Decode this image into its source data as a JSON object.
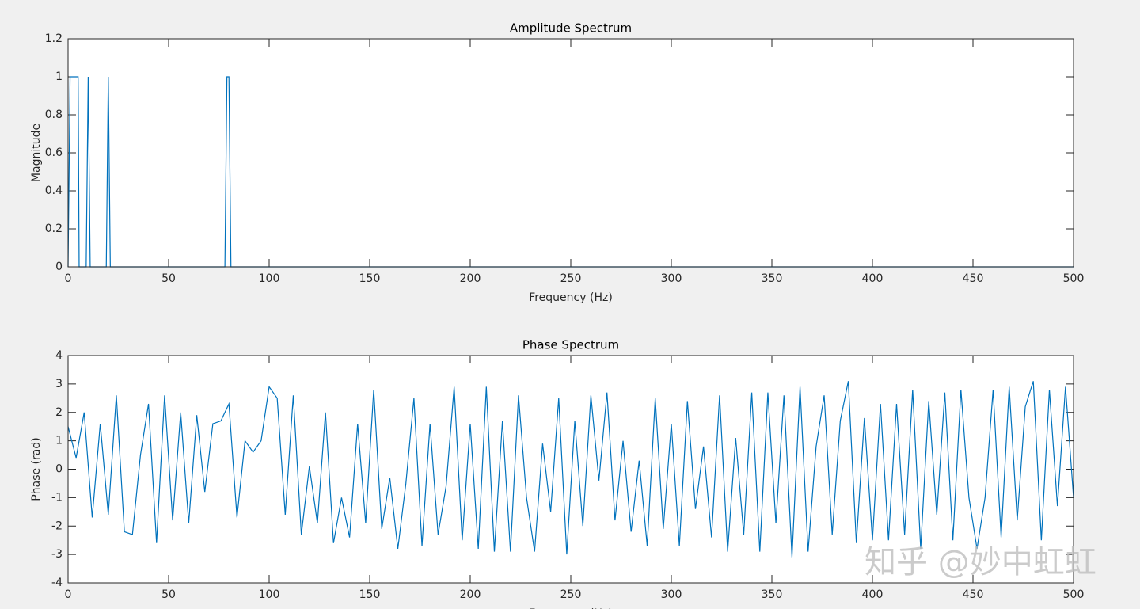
{
  "chart_data": [
    {
      "type": "line",
      "title": "Amplitude Spectrum",
      "xlabel": "Frequency (Hz)",
      "ylabel": "Magnitude",
      "series": [
        {
          "name": "Amplitude",
          "color": "#0072bd",
          "x": [
            0,
            1,
            2,
            3,
            4,
            5,
            5.5,
            9,
            10,
            11,
            19,
            20,
            21,
            78,
            79,
            80,
            81,
            500
          ],
          "values": [
            0,
            1,
            1,
            1,
            1,
            1,
            0,
            0,
            1,
            0,
            0,
            1,
            0,
            0,
            1,
            1,
            0,
            0
          ]
        }
      ],
      "xlim": [
        0,
        500
      ],
      "xticks": [
        0,
        50,
        100,
        150,
        200,
        250,
        300,
        350,
        400,
        450,
        500
      ],
      "ylim": [
        0,
        1.2
      ],
      "yticks": [
        0,
        0.2,
        0.4,
        0.6,
        0.8,
        1,
        1.2
      ],
      "grid": false
    },
    {
      "type": "line",
      "title": "Phase Spectrum",
      "xlabel": "Frequency (Hz)",
      "ylabel": "Phase (rad)",
      "series": [
        {
          "name": "Phase",
          "color": "#0072bd",
          "x": [
            0,
            4,
            8,
            12,
            16,
            20,
            24,
            28,
            32,
            36,
            40,
            44,
            48,
            52,
            56,
            60,
            64,
            68,
            72,
            76,
            80,
            84,
            88,
            92,
            96,
            100,
            104,
            108,
            112,
            116,
            120,
            124,
            128,
            132,
            136,
            140,
            144,
            148,
            152,
            156,
            160,
            164,
            168,
            172,
            176,
            180,
            184,
            188,
            192,
            196,
            200,
            204,
            208,
            212,
            216,
            220,
            224,
            228,
            232,
            236,
            240,
            244,
            248,
            252,
            256,
            260,
            264,
            268,
            272,
            276,
            280,
            284,
            288,
            292,
            296,
            300,
            304,
            308,
            312,
            316,
            320,
            324,
            328,
            332,
            336,
            340,
            344,
            348,
            352,
            356,
            360,
            364,
            368,
            372,
            376,
            380,
            384,
            388,
            392,
            396,
            400,
            404,
            408,
            412,
            416,
            420,
            424,
            428,
            432,
            436,
            440,
            444,
            448,
            452,
            456,
            460,
            464,
            468,
            472,
            476,
            480,
            484,
            488,
            492,
            496,
            500
          ],
          "values": [
            1.5,
            0.4,
            2.0,
            -1.7,
            1.6,
            -1.6,
            2.6,
            -2.2,
            -2.3,
            0.5,
            2.3,
            -2.6,
            2.6,
            -1.8,
            2.0,
            -1.9,
            1.9,
            -0.8,
            1.6,
            1.7,
            2.3,
            -1.7,
            1.0,
            0.6,
            1.0,
            2.9,
            2.5,
            -1.6,
            2.6,
            -2.3,
            0.1,
            -1.9,
            2.0,
            -2.6,
            -1.0,
            -2.4,
            1.6,
            -1.9,
            2.8,
            -2.1,
            -0.3,
            -2.8,
            -0.5,
            2.5,
            -2.7,
            1.6,
            -2.3,
            -0.6,
            2.9,
            -2.5,
            1.6,
            -2.8,
            2.9,
            -2.9,
            1.7,
            -2.9,
            2.6,
            -1.0,
            -2.9,
            0.9,
            -1.5,
            2.5,
            -3.0,
            1.7,
            -2.0,
            2.6,
            -0.4,
            2.7,
            -1.8,
            1.0,
            -2.2,
            0.3,
            -2.7,
            2.5,
            -2.1,
            1.6,
            -2.7,
            2.4,
            -1.4,
            0.8,
            -2.4,
            2.6,
            -2.9,
            1.1,
            -2.3,
            2.7,
            -2.9,
            2.7,
            -1.9,
            2.6,
            -3.1,
            2.9,
            -2.9,
            0.8,
            2.6,
            -2.3,
            1.7,
            3.1,
            -2.6,
            1.8,
            -2.5,
            2.3,
            -2.5,
            2.3,
            -2.3,
            2.8,
            -2.8,
            2.4,
            -1.6,
            2.7,
            -2.5,
            2.8,
            -1.0,
            -2.8,
            -1.0,
            2.8,
            -2.4,
            2.9,
            -1.8,
            2.2,
            3.1,
            -2.5,
            2.8,
            -1.3,
            2.9,
            -1.0
          ]
        }
      ],
      "xlim": [
        0,
        500
      ],
      "xticks": [
        0,
        50,
        100,
        150,
        200,
        250,
        300,
        350,
        400,
        450,
        500
      ],
      "ylim": [
        -4,
        4
      ],
      "yticks": [
        -4,
        -3,
        -2,
        -1,
        0,
        1,
        2,
        3,
        4
      ],
      "grid": false
    }
  ],
  "watermark": "知乎 @妙中虹虹"
}
